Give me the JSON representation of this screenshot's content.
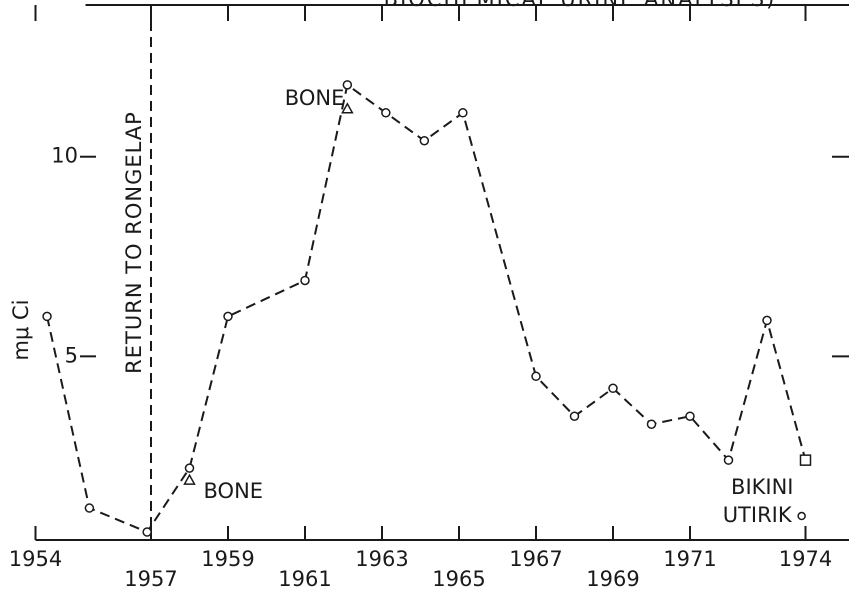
{
  "chart_data": {
    "type": "line",
    "title": "BIOCHEMICAL URINE ANALYSES)",
    "y_label": "mμ Ci",
    "x": [
      1954.3,
      1955.4,
      1956.9,
      1958,
      1959,
      1961,
      1962.1,
      1963.1,
      1964.1,
      1965.1,
      1967,
      1968,
      1969,
      1970,
      1971,
      1972,
      1973,
      1974
    ],
    "series": [
      {
        "values": [
          6.0,
          1.2,
          0.6,
          2.2,
          6.0,
          6.9,
          11.8,
          11.1,
          10.4,
          11.1,
          4.5,
          3.5,
          4.2,
          3.3,
          3.5,
          2.4,
          5.9,
          2.4
        ],
        "color": "#1a1a1a"
      }
    ],
    "bone": {
      "label": "BONE",
      "x": [
        1958,
        1962.1
      ],
      "values": [
        1.9,
        11.2
      ]
    },
    "bikini": {
      "label": "BIKINI",
      "x": 1974,
      "value": 2.4
    },
    "utirik": {
      "label": "UTIRIK",
      "x": 1973.9,
      "value": 1.0
    },
    "event": {
      "label": "RETURN TO RONGELAP",
      "x": 1957
    },
    "xlim": [
      1954,
      1975
    ],
    "xticks": [
      1954,
      1957,
      1959,
      1961,
      1963,
      1965,
      1967,
      1969,
      1971,
      1974
    ],
    "ylim": [
      0.4,
      13.8
    ],
    "yticks": [
      5,
      10
    ]
  }
}
